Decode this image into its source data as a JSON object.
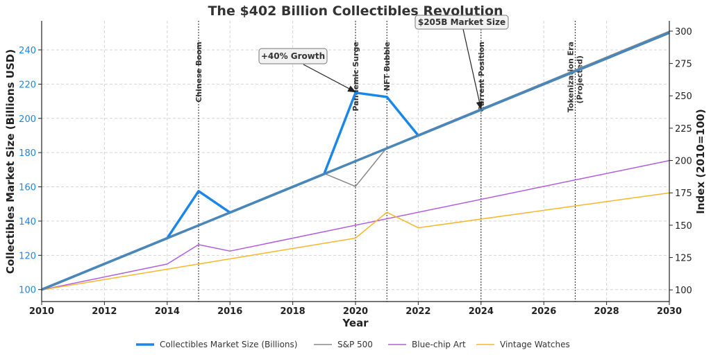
{
  "chart_data": {
    "type": "line",
    "title": "The $402 Billion Collectibles Revolution",
    "xlabel": "Year",
    "ylabel_left": "Collectibles Market Size (Billions USD)",
    "ylabel_right": "Index (2010=100)",
    "xlim": [
      2010,
      2030
    ],
    "ylim_left": [
      93,
      257
    ],
    "ylim_right": [
      91,
      308
    ],
    "x_ticks": [
      2010,
      2012,
      2014,
      2016,
      2018,
      2020,
      2022,
      2024,
      2026,
      2028,
      2030
    ],
    "y_ticks_left": [
      100,
      120,
      140,
      160,
      180,
      200,
      220,
      240
    ],
    "y_ticks_right": [
      100,
      125,
      150,
      175,
      200,
      225,
      250,
      275,
      300
    ],
    "grid": true,
    "colors": {
      "market": "#1a87e8",
      "trend": "#4a86b8",
      "sp500": "#888888",
      "art": "#b05ce0",
      "watches": "#f8b628",
      "left_axis_text": "#1a87e8",
      "text": "#333333"
    },
    "series": [
      {
        "name": "Collectibles Market Size (Billions)",
        "axis": "left",
        "x": [
          2010,
          2014,
          2015,
          2016,
          2019,
          2020,
          2021,
          2022,
          2024,
          2030
        ],
        "values": [
          100,
          130,
          157.5,
          145,
          167.5,
          215,
          212.5,
          190,
          205,
          250
        ]
      },
      {
        "name": "S&P 500",
        "axis": "right",
        "x": [
          2010,
          2014,
          2016,
          2019,
          2020,
          2021,
          2022,
          2030
        ],
        "values": [
          100,
          140,
          160,
          190,
          180,
          210,
          220,
          300
        ]
      },
      {
        "name": "Blue-chip Art",
        "axis": "right",
        "x": [
          2010,
          2014,
          2015,
          2016,
          2030
        ],
        "values": [
          100,
          120,
          135,
          130,
          200
        ]
      },
      {
        "name": "Vintage Watches",
        "axis": "right",
        "x": [
          2010,
          2020,
          2021,
          2022,
          2030
        ],
        "values": [
          100,
          140,
          160,
          148,
          175
        ]
      }
    ],
    "trend": {
      "axis": "left",
      "x": [
        2010,
        2014,
        2015,
        2016,
        2019,
        2022,
        2024,
        2030
      ],
      "values": [
        100,
        130,
        137.5,
        145,
        167.5,
        190,
        205,
        250
      ]
    },
    "events": [
      {
        "year": 2015,
        "label": "Chinese Boom",
        "multiline": false
      },
      {
        "year": 2020,
        "label": "Pandemic Surge",
        "multiline": false
      },
      {
        "year": 2021,
        "label": "NFT Bubble",
        "multiline": false
      },
      {
        "year": 2024,
        "label": "Current Position",
        "multiline": false
      },
      {
        "year": 2027,
        "label": "Tokenization Era",
        "label2": "(Projected)",
        "multiline": true
      }
    ],
    "annotations": [
      {
        "text": "+40% Growth",
        "point": [
          2020,
          215
        ]
      },
      {
        "text": "$205B Market Size",
        "point": [
          2024,
          205
        ]
      }
    ],
    "legend": {
      "position": "bottom",
      "entries": [
        "Collectibles Market Size (Billions)",
        "S&P 500",
        "Blue-chip Art",
        "Vintage Watches"
      ]
    }
  }
}
